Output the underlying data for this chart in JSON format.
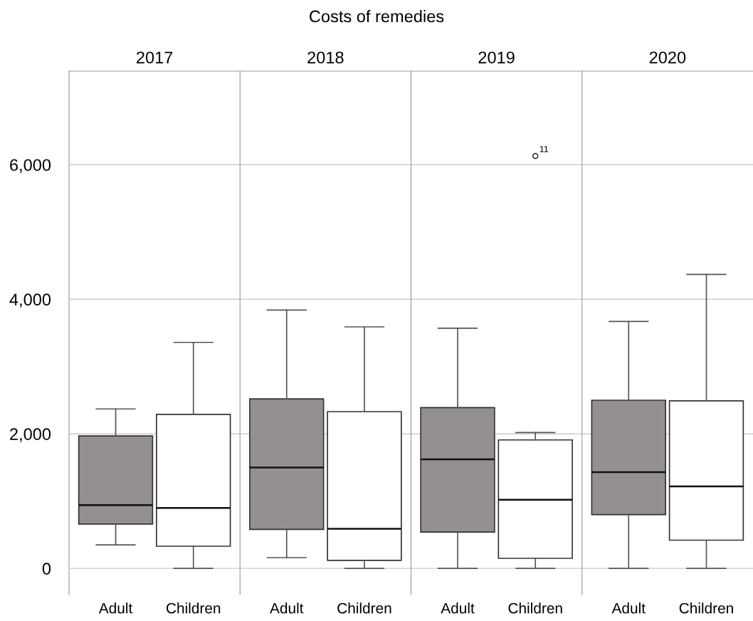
{
  "chart_data": [
    {
      "type": "box",
      "title": "2017",
      "annotations": [
        "Costs of remedies"
      ],
      "categories": [
        "Adult",
        "Children"
      ],
      "colors": [
        "#968f8f",
        "#ffffff"
      ],
      "boxes": [
        {
          "low": 350,
          "q1": 660,
          "median": 940,
          "q3": 1970,
          "high": 2370
        },
        {
          "low": 0,
          "q1": 330,
          "median": 900,
          "q3": 2290,
          "high": 3360
        }
      ],
      "ylim": [
        -390,
        7390
      ],
      "yticks": [
        {
          "value": 0,
          "label": "0"
        },
        {
          "value": 2000,
          "label": "2,000"
        },
        {
          "value": 4000,
          "label": "4,000"
        },
        {
          "value": 6000,
          "label": "6,000"
        }
      ],
      "grid": "y"
    },
    {
      "type": "box",
      "title": "2018",
      "categories": [
        "Adult",
        "Children"
      ],
      "colors": [
        "#968f8f",
        "#ffffff"
      ],
      "boxes": [
        {
          "low": 160,
          "q1": 580,
          "median": 1500,
          "q3": 2520,
          "high": 3840
        },
        {
          "low": 0,
          "q1": 120,
          "median": 590,
          "q3": 2330,
          "high": 3590
        }
      ],
      "ylim": [
        -390,
        7390
      ],
      "yticks": [
        {
          "value": 0,
          "label": null
        },
        {
          "value": 2000,
          "label": null
        },
        {
          "value": 4000,
          "label": null
        },
        {
          "value": 6000,
          "label": null
        }
      ],
      "grid": "y",
      "tick_labels": "x"
    },
    {
      "type": "box",
      "title": "2019",
      "annotations": [
        "11"
      ],
      "categories": [
        "Adult",
        "Children"
      ],
      "colors": [
        "#968f8f",
        "#ffffff"
      ],
      "boxes": [
        {
          "low": 0,
          "q1": 540,
          "median": 1620,
          "q3": 2390,
          "high": 3570
        },
        {
          "low": 0,
          "q1": 150,
          "median": 1020,
          "q3": 1910,
          "high": 2020,
          "outliers": [
            6130
          ]
        }
      ],
      "ylim": [
        -390,
        7390
      ],
      "yticks": [
        {
          "value": 0,
          "label": null
        },
        {
          "value": 2000,
          "label": null
        },
        {
          "value": 4000,
          "label": null
        },
        {
          "value": 6000,
          "label": null
        }
      ],
      "grid": "y",
      "tick_labels": "x"
    },
    {
      "type": "box",
      "title": "2020",
      "categories": [
        "Adult",
        "Children"
      ],
      "colors": [
        "#968f8f",
        "#ffffff"
      ],
      "boxes": [
        {
          "low": 0,
          "q1": 800,
          "median": 1430,
          "q3": 2500,
          "high": 3670
        },
        {
          "low": 0,
          "q1": 420,
          "median": 1220,
          "q3": 2490,
          "high": 4370
        }
      ],
      "ylim": [
        -390,
        7390
      ],
      "yticks": [
        {
          "value": 0,
          "label": null
        },
        {
          "value": 2000,
          "label": null
        },
        {
          "value": 4000,
          "label": null
        },
        {
          "value": 6000,
          "label": null
        }
      ],
      "grid": "y",
      "tick_labels": "x"
    }
  ]
}
